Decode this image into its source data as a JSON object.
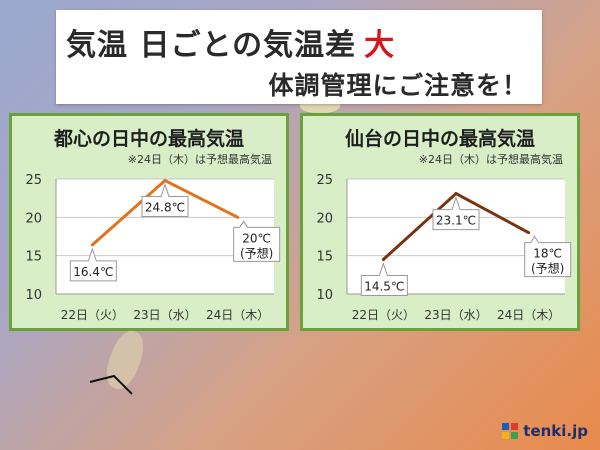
{
  "title": {
    "main": "気温 日ごとの気温差",
    "accent": "大",
    "sub": "体調管理にご注意を！"
  },
  "logo": {
    "text": "tenki.jp"
  },
  "charts": [
    {
      "title": "都心の日中の最高気温",
      "note": "※24日（木）は予想最高気温",
      "color": "#e2721c"
    },
    {
      "title": "仙台の日中の最高気温",
      "note": "※24日（木）は予想最高気温",
      "color": "#7a3510"
    }
  ],
  "chart_data": [
    {
      "type": "line",
      "title": "都心の日中の最高気温",
      "categories": [
        "22日（火）",
        "23日（水）",
        "24日（木）"
      ],
      "values": [
        16.4,
        24.8,
        20
      ],
      "data_labels": [
        "16.4℃",
        "24.8℃",
        "20℃\n(予想)"
      ],
      "yticks": [
        10,
        15,
        20,
        25
      ],
      "ylim": [
        10,
        25
      ],
      "grid": true
    },
    {
      "type": "line",
      "title": "仙台の日中の最高気温",
      "categories": [
        "22日（火）",
        "23日（水）",
        "24日（木）"
      ],
      "values": [
        14.5,
        23.1,
        18
      ],
      "data_labels": [
        "14.5℃",
        "23.1℃",
        "18℃\n(予想)"
      ],
      "yticks": [
        10,
        15,
        20,
        25
      ],
      "ylim": [
        10,
        25
      ],
      "grid": true
    }
  ]
}
